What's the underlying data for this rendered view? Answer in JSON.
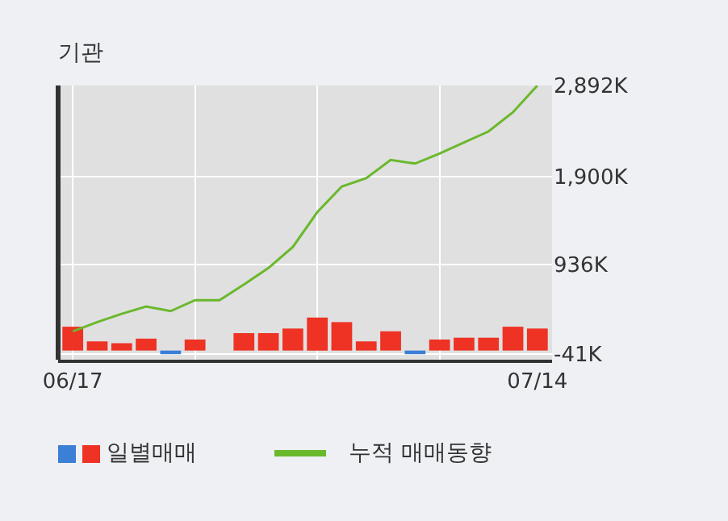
{
  "chart_data": {
    "type": "bar",
    "title": "기관",
    "categories": [
      "06/17",
      null,
      null,
      null,
      null,
      null,
      null,
      null,
      null,
      null,
      null,
      null,
      null,
      null,
      null,
      null,
      null,
      null,
      null,
      "07/14"
    ],
    "series": [
      {
        "name": "일별매매",
        "colors": [
          "#ee3224",
          "#ee3224",
          "#ee3224",
          "#ee3224",
          "#3b7fd6",
          "#ee3224",
          "#ee3224",
          "#ee3224",
          "#ee3224",
          "#ee3224",
          "#ee3224",
          "#ee3224",
          "#ee3224",
          "#ee3224",
          "#3b7fd6",
          "#ee3224",
          "#ee3224",
          "#ee3224",
          "#ee3224",
          "#ee3224"
        ],
        "values": [
          260,
          100,
          80,
          130,
          -40,
          120,
          0,
          190,
          190,
          240,
          360,
          310,
          100,
          210,
          -40,
          120,
          140,
          140,
          260,
          240
        ]
      },
      {
        "name": "누적 매매동향",
        "type": "line",
        "color": "#6ab82c",
        "values": [
          210,
          310,
          400,
          480,
          430,
          550,
          550,
          720,
          900,
          1130,
          1510,
          1790,
          1880,
          2080,
          2040,
          2150,
          2270,
          2390,
          2600,
          2892
        ]
      }
    ],
    "ylim": [
      -100,
      2892
    ],
    "yticks": [
      {
        "value": 2892,
        "label": "2,892K"
      },
      {
        "value": 1900,
        "label": "1,900K"
      },
      {
        "value": 936,
        "label": "936K"
      },
      {
        "value": -41,
        "label": "-41K"
      }
    ],
    "grid": true,
    "legend": "bottom",
    "marker": "none",
    "line_style": "solid"
  }
}
